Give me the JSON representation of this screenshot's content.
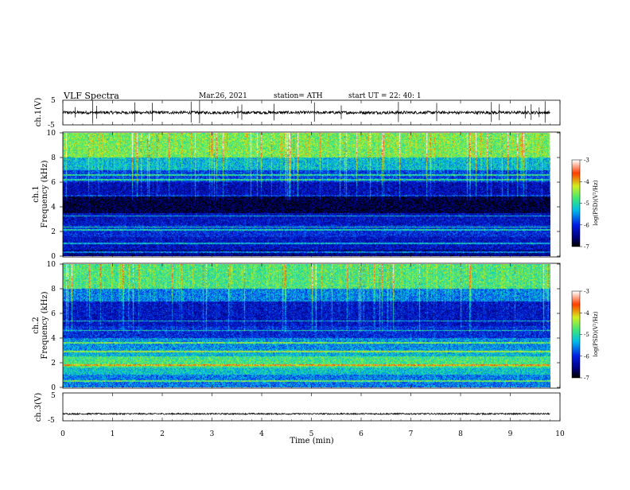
{
  "header": {
    "title": "VLF  Spectra",
    "date": "Mar.26, 2021",
    "station": "station= ATH",
    "start": "start  UT  =    22: 40: 1"
  },
  "chart_data": [
    {
      "type": "line",
      "panel": "ch1-waveform",
      "ylabel": "ch.1(V)",
      "ylim": [
        -5,
        5
      ],
      "yticks": [
        "5",
        "-5"
      ],
      "xlim": [
        0,
        10
      ],
      "baseline": 0,
      "noise_amplitude": 0.6,
      "spike_x": [
        0.25,
        0.6,
        0.68,
        1.45,
        1.8,
        2.58,
        2.75,
        3.52,
        3.6,
        4.25,
        5.06,
        5.6,
        6.75,
        7.52,
        8.62,
        8.78,
        9.3,
        9.42,
        9.58,
        9.7
      ]
    },
    {
      "type": "heatmap",
      "panel": "ch1-spectrogram",
      "ylabel": "ch.1\nFrequency (kHz)",
      "ylabel_line1": "ch.1",
      "ylabel_line2": "Frequency (kHz)",
      "ylim": [
        0,
        10
      ],
      "yticks": [
        "0",
        "2",
        "4",
        "6",
        "8",
        "10"
      ],
      "xlim": [
        0,
        9.8
      ],
      "colorbar": {
        "label": "log(PSD)(V²/Hz)",
        "range": [
          -7,
          -3
        ],
        "ticks": [
          "-3",
          "-4",
          "-5",
          "-6",
          "-7"
        ]
      },
      "band_levels": [
        {
          "f": [
            8.0,
            10.0
          ],
          "level": -4.6
        },
        {
          "f": [
            7.0,
            8.0
          ],
          "level": -5.3
        },
        {
          "f": [
            6.0,
            7.0
          ],
          "level": -5.9
        },
        {
          "f": [
            5.0,
            6.0
          ],
          "level": -6.3
        },
        {
          "f": [
            3.5,
            5.0
          ],
          "level": -6.8
        },
        {
          "f": [
            2.5,
            3.5
          ],
          "level": -6.2
        },
        {
          "f": [
            1.5,
            2.5
          ],
          "level": -6.0
        },
        {
          "f": [
            0.5,
            1.5
          ],
          "level": -6.2
        },
        {
          "f": [
            0.0,
            0.5
          ],
          "level": -6.5
        }
      ],
      "tones_khz": [
        0.3,
        1.0,
        2.1,
        2.35,
        3.25,
        4.9,
        6.2,
        6.6
      ]
    },
    {
      "type": "heatmap",
      "panel": "ch2-spectrogram",
      "ylabel_line1": "ch.2",
      "ylabel_line2": "Frequency (kHz)",
      "ylim": [
        0,
        10
      ],
      "yticks": [
        "0",
        "2",
        "4",
        "6",
        "8",
        "10"
      ],
      "xlim": [
        0,
        9.8
      ],
      "colorbar": {
        "label": "log(PSD)(V²/Hz)",
        "range": [
          -7,
          -3
        ],
        "ticks": [
          "-3",
          "-4",
          "-5",
          "-6",
          "-7"
        ]
      },
      "band_levels": [
        {
          "f": [
            8.0,
            10.0
          ],
          "level": -4.8
        },
        {
          "f": [
            7.0,
            8.0
          ],
          "level": -5.6
        },
        {
          "f": [
            5.0,
            7.0
          ],
          "level": -6.2
        },
        {
          "f": [
            4.0,
            5.0
          ],
          "level": -6.0
        },
        {
          "f": [
            3.0,
            4.0
          ],
          "level": -5.5
        },
        {
          "f": [
            2.5,
            3.0
          ],
          "level": -5.3
        },
        {
          "f": [
            1.6,
            2.5
          ],
          "level": -4.8
        },
        {
          "f": [
            1.0,
            1.6
          ],
          "level": -5.2
        },
        {
          "f": [
            0.0,
            1.0
          ],
          "level": -5.6
        }
      ],
      "tones_khz": [
        0.5,
        1.8,
        2.9,
        3.6,
        4.6,
        5.4
      ]
    },
    {
      "type": "line",
      "panel": "ch3-waveform",
      "ylabel": "ch.3(V)",
      "ylim": [
        -5,
        5
      ],
      "yticks": [
        "5",
        "-5"
      ],
      "xlim": [
        0,
        10
      ],
      "baseline": -2.5,
      "noise_amplitude": 0.25
    }
  ],
  "xaxis": {
    "label": "Time  (min)",
    "ticks": [
      "0",
      "1",
      "2",
      "3",
      "4",
      "5",
      "6",
      "7",
      "8",
      "9",
      "10"
    ]
  }
}
